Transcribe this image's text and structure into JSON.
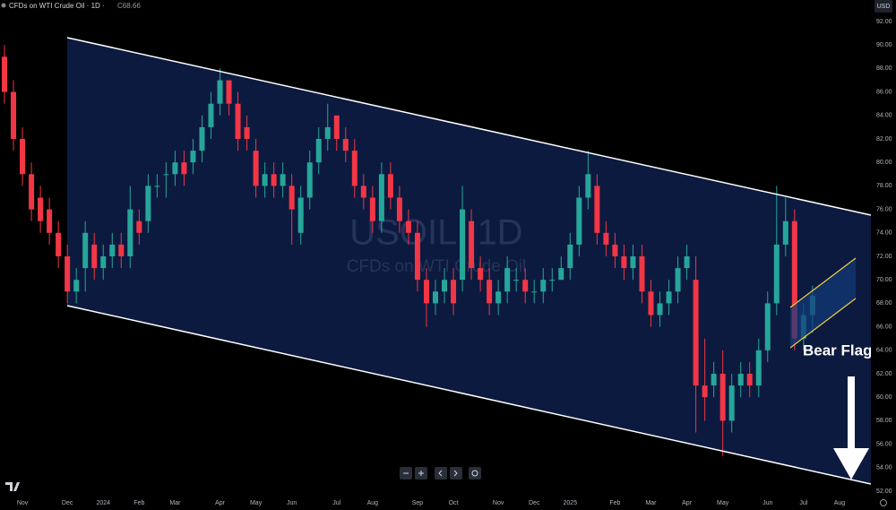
{
  "chart_data": {
    "type": "candlestick",
    "title": "CFDs on WTI Crude Oil · 1D ·",
    "last_price_label": "C68.66",
    "currency": "USD",
    "watermark": "USOIL, 1D",
    "watermark_subtitle": "CFDs on WTI Crude Oil",
    "annotation": "Bear Flag",
    "up_color": "#26a69a",
    "down_color": "#f23645",
    "categories": [
      null,
      null,
      "Nov",
      null,
      null,
      null,
      null,
      "Dec",
      null,
      null,
      null,
      "2024",
      null,
      null,
      null,
      "Feb",
      null,
      null,
      null,
      "Mar",
      null,
      null,
      null,
      null,
      "Apr",
      null,
      null,
      null,
      "May",
      null,
      null,
      null,
      "Jun",
      null,
      null,
      null,
      null,
      "Jul",
      null,
      null,
      null,
      "Aug",
      null,
      null,
      null,
      null,
      "Sep",
      null,
      null,
      null,
      "Oct",
      null,
      null,
      null,
      null,
      "Nov",
      null,
      null,
      null,
      "Dec",
      null,
      null,
      null,
      "2025",
      null,
      null,
      null,
      null,
      "Feb",
      null,
      null,
      null,
      "Mar",
      null,
      null,
      null,
      "Apr",
      null,
      null,
      null,
      "May",
      null,
      null,
      null,
      null,
      "Jun",
      null,
      null,
      null,
      "Jul",
      null,
      null,
      null,
      "Aug",
      null,
      null,
      null
    ],
    "open": [
      89,
      86,
      82,
      79,
      77,
      76,
      74,
      72,
      69,
      71,
      73,
      71,
      72,
      73,
      72,
      75,
      75,
      78,
      79,
      79,
      80,
      80,
      81,
      83,
      85,
      87,
      85,
      83,
      81,
      78,
      79,
      78,
      78,
      74,
      77,
      80,
      82,
      84,
      82,
      81,
      78,
      77,
      75,
      79,
      77,
      75,
      74,
      70,
      68,
      69,
      70,
      70,
      75,
      71,
      70,
      68,
      69,
      70,
      70,
      69,
      69,
      70,
      70,
      71,
      73,
      77,
      78,
      74,
      73,
      72,
      71,
      72,
      69,
      67,
      68,
      69,
      71,
      70,
      61,
      61,
      62,
      58,
      61,
      62,
      61,
      64,
      68,
      73,
      75,
      65,
      67,
      null,
      null,
      null,
      null,
      null,
      null
    ],
    "high": [
      90,
      87,
      83,
      80,
      78,
      77,
      75,
      73,
      71,
      75,
      74,
      73,
      74,
      74,
      78,
      76,
      79,
      79,
      80,
      81,
      81,
      82,
      84,
      86,
      88,
      87,
      86,
      84,
      82,
      80,
      80,
      80,
      79,
      78,
      81,
      83,
      85,
      84,
      83,
      82,
      79,
      78,
      80,
      80,
      78,
      76,
      75,
      71,
      70,
      71,
      71,
      78,
      76,
      72,
      71,
      70,
      72,
      71,
      71,
      70,
      71,
      71,
      72,
      74,
      78,
      81,
      79,
      75,
      74,
      73,
      73,
      73,
      70,
      69,
      70,
      72,
      73,
      72,
      65,
      63,
      64,
      62,
      63,
      63,
      65,
      69,
      78,
      77,
      76,
      68,
      69.5,
      null,
      null,
      null,
      null,
      null,
      null
    ],
    "low": [
      85,
      81,
      78,
      75,
      74,
      73,
      71,
      68,
      68,
      69,
      70,
      70,
      71,
      71,
      71,
      73,
      74,
      77,
      77,
      78,
      78,
      79,
      80,
      82,
      84,
      84,
      81,
      81,
      77,
      77,
      77,
      77,
      73,
      73,
      76,
      79,
      81,
      81,
      80,
      77,
      76,
      74,
      74,
      76,
      74,
      73,
      69,
      66,
      67,
      68,
      67,
      69,
      70,
      69,
      67,
      67,
      68,
      69,
      68,
      68,
      68,
      69,
      70,
      70,
      72,
      76,
      73,
      72,
      71,
      70,
      70,
      68,
      66,
      66,
      67,
      68,
      70,
      57,
      58,
      60,
      55,
      57,
      60,
      60,
      60,
      63,
      67,
      72,
      64,
      64,
      65.5,
      null,
      null,
      null,
      null,
      null,
      null
    ],
    "close": [
      86,
      82,
      79,
      76,
      75,
      74,
      72,
      69,
      70,
      74,
      71,
      72,
      73,
      72,
      76,
      74,
      78,
      78,
      79,
      80,
      79,
      81,
      83,
      85,
      87,
      85,
      82,
      82,
      78,
      79,
      78,
      79,
      76,
      77,
      80,
      82,
      83,
      82,
      81,
      78,
      77,
      75,
      79,
      77,
      75,
      74,
      70,
      68,
      69,
      70,
      68,
      76,
      71,
      70,
      68,
      69,
      71,
      70,
      69,
      69,
      70,
      70,
      71,
      73,
      77,
      79,
      74,
      73,
      72,
      71,
      72,
      69,
      67,
      68,
      69,
      71,
      72,
      61,
      60,
      62,
      58,
      61,
      62,
      61,
      64,
      68,
      73,
      75,
      65,
      67,
      68.66,
      null,
      null,
      null,
      null,
      null,
      null
    ],
    "ylim": [
      52,
      92
    ],
    "yticks": [
      {
        "value": 92,
        "label": "92.00"
      },
      {
        "value": 90,
        "label": "90.00"
      },
      {
        "value": 88,
        "label": "88.00"
      },
      {
        "value": 86,
        "label": "86.00"
      },
      {
        "value": 84,
        "label": "84.00"
      },
      {
        "value": 82,
        "label": "82.00"
      },
      {
        "value": 80,
        "label": "80.00"
      },
      {
        "value": 78,
        "label": "78.00"
      },
      {
        "value": 76,
        "label": "76.00"
      },
      {
        "value": 74,
        "label": "74.00"
      },
      {
        "value": 72,
        "label": "72.00"
      },
      {
        "value": 70,
        "label": "70.00"
      },
      {
        "value": 68,
        "label": "68.00"
      },
      {
        "value": 66,
        "label": "66.00"
      },
      {
        "value": 64,
        "label": "64.00"
      },
      {
        "value": 62,
        "label": "62.00"
      },
      {
        "value": 60,
        "label": "60.00"
      },
      {
        "value": 58,
        "label": "58.00"
      },
      {
        "value": 56,
        "label": "56.00"
      },
      {
        "value": 54,
        "label": "54.00"
      },
      {
        "value": 52,
        "label": "52.00"
      }
    ]
  }
}
